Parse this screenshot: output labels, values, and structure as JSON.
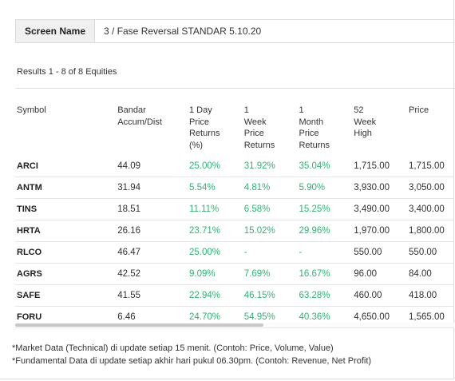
{
  "screen": {
    "label": "Screen Name",
    "value": "3 / Fase Reversal STANDAR 5.10.20"
  },
  "results_text": "Results 1 - 8 of 8 Equities",
  "columns": [
    [
      "Symbol"
    ],
    [
      "Bandar",
      "Accum/Dist"
    ],
    [
      "1 Day",
      "Price",
      "Returns",
      "(%)"
    ],
    [
      "1",
      "Week",
      "Price",
      "Returns"
    ],
    [
      "1",
      "Month",
      "Price",
      "Returns"
    ],
    [
      "52",
      "Week",
      "High"
    ],
    [
      "Price"
    ]
  ],
  "rows": [
    [
      "ARCI",
      "44.09",
      "25.00%",
      "31.92%",
      "35.04%",
      "1,715.00",
      "1,715.00"
    ],
    [
      "ANTM",
      "31.94",
      "5.54%",
      "4.81%",
      "5.90%",
      "3,930.00",
      "3,050.00"
    ],
    [
      "TINS",
      "18.51",
      "11.11%",
      "6.58%",
      "15.25%",
      "3,490.00",
      "3,400.00"
    ],
    [
      "HRTA",
      "26.16",
      "23.71%",
      "15.02%",
      "29.96%",
      "1,970.00",
      "1,800.00"
    ],
    [
      "RLCO",
      "46.47",
      "25.00%",
      "-",
      "-",
      "550.00",
      "550.00"
    ],
    [
      "AGRS",
      "42.52",
      "9.09%",
      "7.69%",
      "16.67%",
      "96.00",
      "84.00"
    ],
    [
      "SAFE",
      "41.55",
      "22.94%",
      "46.15%",
      "63.28%",
      "460.00",
      "418.00"
    ],
    [
      "FORU",
      "6.46",
      "24.70%",
      "54.95%",
      "40.36%",
      "4,650.00",
      "1,565.00"
    ]
  ],
  "footnotes": [
    "*Market Data (Technical) di update setiap 15 menit. (Contoh: Price, Volume, Value)",
    "*Fundamental Data di update setiap akhir hari pukul 06.30pm. (Contoh: Revenue, Net Profit)"
  ],
  "colors": {
    "positive": "#2bb673",
    "border": "#dcdcdc",
    "label_bg": "#f0f0f0"
  }
}
